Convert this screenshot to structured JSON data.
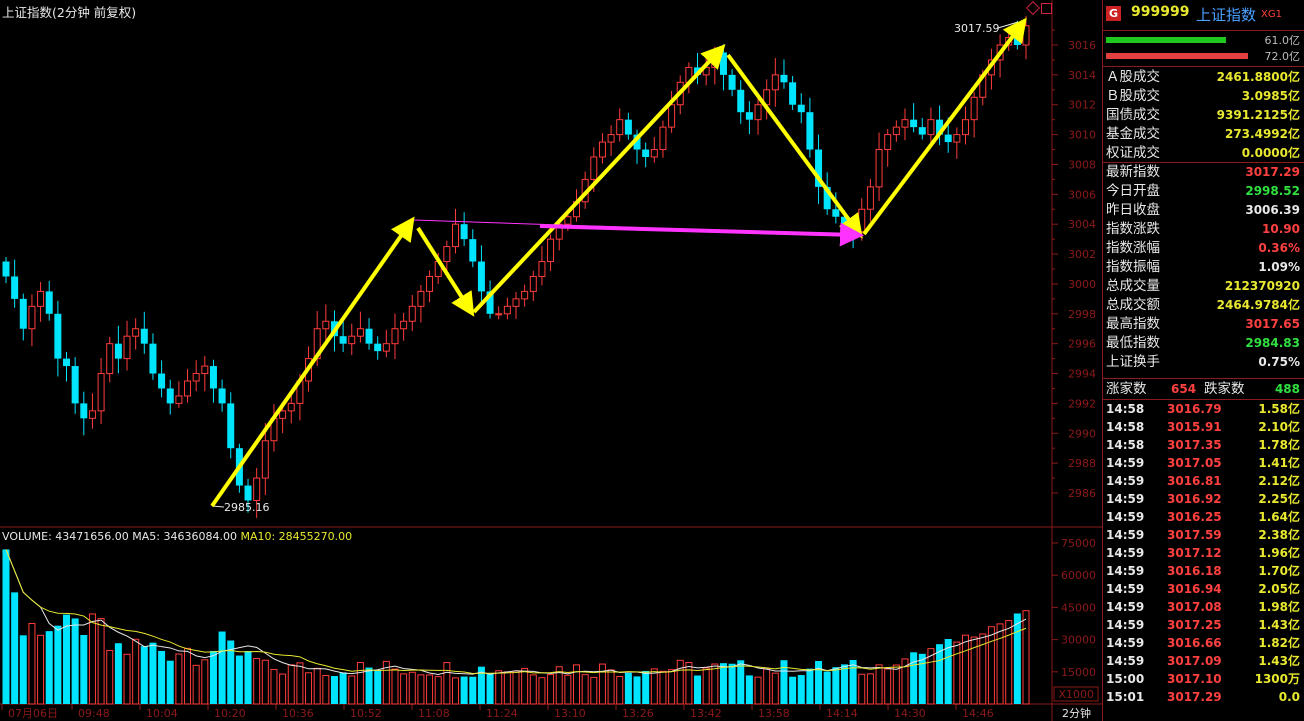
{
  "header": {
    "title": "上证指数(2分钟 前复权)"
  },
  "volume_header": {
    "volume": "VOLUME: 43471656.00",
    "ma5": "MA5: 34636084.00",
    "ma10": "MA10: 28455270.00"
  },
  "price_axis": [
    "3016",
    "3014",
    "3012",
    "3010",
    "3008",
    "3006",
    "3004",
    "3002",
    "3000",
    "2998",
    "2996",
    "2994",
    "2992",
    "2990",
    "2988",
    "2986"
  ],
  "volume_axis": [
    "75000",
    "60000",
    "45000",
    "30000",
    "15000"
  ],
  "volume_unit": "X1000",
  "time_axis": [
    "07月06日",
    "09:48",
    "10:04",
    "10:20",
    "10:36",
    "10:52",
    "11:08",
    "11:24",
    "13:10",
    "13:26",
    "13:42",
    "13:58",
    "14:14",
    "14:30",
    "14:46"
  ],
  "period_label": "2分钟",
  "annotations": {
    "high_label": "3017.59",
    "low_label": "2985.16"
  },
  "side": {
    "g_badge": "G",
    "code": "999999",
    "name": "上证指数",
    "suffix": "XG1",
    "inflow": "61.0亿",
    "outflow": "72.0亿",
    "stats": [
      {
        "label": "Ａ股成交",
        "value": "2461.8800亿",
        "color": "#e8e830"
      },
      {
        "label": "Ｂ股成交",
        "value": "3.0985亿",
        "color": "#e8e830"
      },
      {
        "label": "国债成交",
        "value": "9391.2125亿",
        "color": "#e8e830"
      },
      {
        "label": "基金成交",
        "value": "273.4992亿",
        "color": "#e8e830"
      },
      {
        "label": "权证成交",
        "value": "0.0000亿",
        "color": "#e8e830"
      },
      {
        "label": "最新指数",
        "value": "3017.29",
        "color": "#ff4040"
      },
      {
        "label": "今日开盘",
        "value": "2998.52",
        "color": "#30e040"
      },
      {
        "label": "昨日收盘",
        "value": "3006.39",
        "color": "#e8e8e8"
      },
      {
        "label": "指数涨跌",
        "value": "10.90",
        "color": "#ff4040"
      },
      {
        "label": "指数涨幅",
        "value": "0.36%",
        "color": "#ff4040"
      },
      {
        "label": "指数振幅",
        "value": "1.09%",
        "color": "#e8e8e8"
      },
      {
        "label": "总成交量",
        "value": "212370920",
        "color": "#e8e830"
      },
      {
        "label": "总成交额",
        "value": "2464.9784亿",
        "color": "#e8e830"
      },
      {
        "label": "最高指数",
        "value": "3017.65",
        "color": "#ff4040"
      },
      {
        "label": "最低指数",
        "value": "2984.83",
        "color": "#30e040"
      },
      {
        "label": "上证换手",
        "value": "0.75%",
        "color": "#e8e8e8"
      }
    ],
    "advance_label": "涨家数",
    "advance": "654",
    "decline_label": "跌家数",
    "decline": "488",
    "ticks": [
      {
        "time": "14:58",
        "price": "3016.79",
        "amt": "1.58亿"
      },
      {
        "time": "14:58",
        "price": "3015.91",
        "amt": "2.10亿"
      },
      {
        "time": "14:58",
        "price": "3017.35",
        "amt": "1.78亿"
      },
      {
        "time": "14:59",
        "price": "3017.05",
        "amt": "1.41亿"
      },
      {
        "time": "14:59",
        "price": "3016.81",
        "amt": "2.12亿"
      },
      {
        "time": "14:59",
        "price": "3016.92",
        "amt": "2.25亿"
      },
      {
        "time": "14:59",
        "price": "3016.25",
        "amt": "1.64亿"
      },
      {
        "time": "14:59",
        "price": "3017.59",
        "amt": "2.38亿"
      },
      {
        "time": "14:59",
        "price": "3017.12",
        "amt": "1.96亿"
      },
      {
        "time": "14:59",
        "price": "3016.18",
        "amt": "1.70亿"
      },
      {
        "time": "14:59",
        "price": "3016.94",
        "amt": "2.05亿"
      },
      {
        "time": "14:59",
        "price": "3017.08",
        "amt": "1.98亿"
      },
      {
        "time": "14:59",
        "price": "3017.25",
        "amt": "1.43亿"
      },
      {
        "time": "14:59",
        "price": "3016.66",
        "amt": "1.82亿"
      },
      {
        "time": "14:59",
        "price": "3017.09",
        "amt": "1.43亿"
      },
      {
        "time": "15:00",
        "price": "3017.10",
        "amt": "1300万"
      },
      {
        "time": "15:01",
        "price": "3017.29",
        "amt": "0.0"
      }
    ]
  },
  "chart_data": {
    "type": "candlestick",
    "price_range": [
      2984.83,
      3017.65
    ],
    "volume_range_thousands": [
      0,
      75000
    ],
    "price_path_close": [
      3000.5,
      2999.0,
      2997.0,
      2998.5,
      2999.5,
      2998.0,
      2995.0,
      2994.5,
      2992.0,
      2991.0,
      2991.5,
      2994.0,
      2996.0,
      2995.0,
      2996.5,
      2997.0,
      2996.0,
      2994.0,
      2993.0,
      2992.0,
      2992.5,
      2993.5,
      2994.0,
      2994.5,
      2993.0,
      2992.0,
      2989.0,
      2986.5,
      2985.5,
      2987.0,
      2989.5,
      2991.0,
      2991.5,
      2992.0,
      2993.5,
      2995.0,
      2997.0,
      2997.5,
      2996.5,
      2996.0,
      2996.5,
      2997.0,
      2996.0,
      2995.5,
      2996.0,
      2997.0,
      2997.5,
      2998.5,
      2999.5,
      3000.5,
      3001.5,
      3002.5,
      3004.0,
      3003.0,
      3001.5,
      2999.5,
      2998.0,
      2998.0,
      2998.5,
      2999.0,
      2999.5,
      3000.5,
      3001.5,
      3003.0,
      3004.0,
      3004.5,
      3005.5,
      3007.0,
      3008.5,
      3009.5,
      3010.0,
      3011.0,
      3010.0,
      3009.0,
      3008.5,
      3009.0,
      3010.5,
      3012.0,
      3013.5,
      3014.5,
      3014.0,
      3014.5,
      3015.5,
      3014.0,
      3013.0,
      3011.5,
      3011.0,
      3012.0,
      3013.0,
      3014.0,
      3013.5,
      3012.0,
      3011.5,
      3009.0,
      3006.5,
      3005.0,
      3004.5,
      3004.0,
      3003.5,
      3005.0,
      3006.5,
      3009.0,
      3010.0,
      3010.5,
      3011.0,
      3010.5,
      3010.0,
      3011.0,
      3010.0,
      3009.5,
      3010.0,
      3011.0,
      3012.5,
      3014.0,
      3015.0,
      3016.0,
      3016.5,
      3016.0,
      3017.29
    ],
    "legend": [
      "VOLUME",
      "MA5",
      "MA10"
    ]
  },
  "colors": {
    "up": "#ff3c3c",
    "down": "#00e5ff",
    "bg": "#000000",
    "grid": "#8c1a1a",
    "arrow": "#ffff00",
    "arrow_flat": "#ff33ff"
  }
}
